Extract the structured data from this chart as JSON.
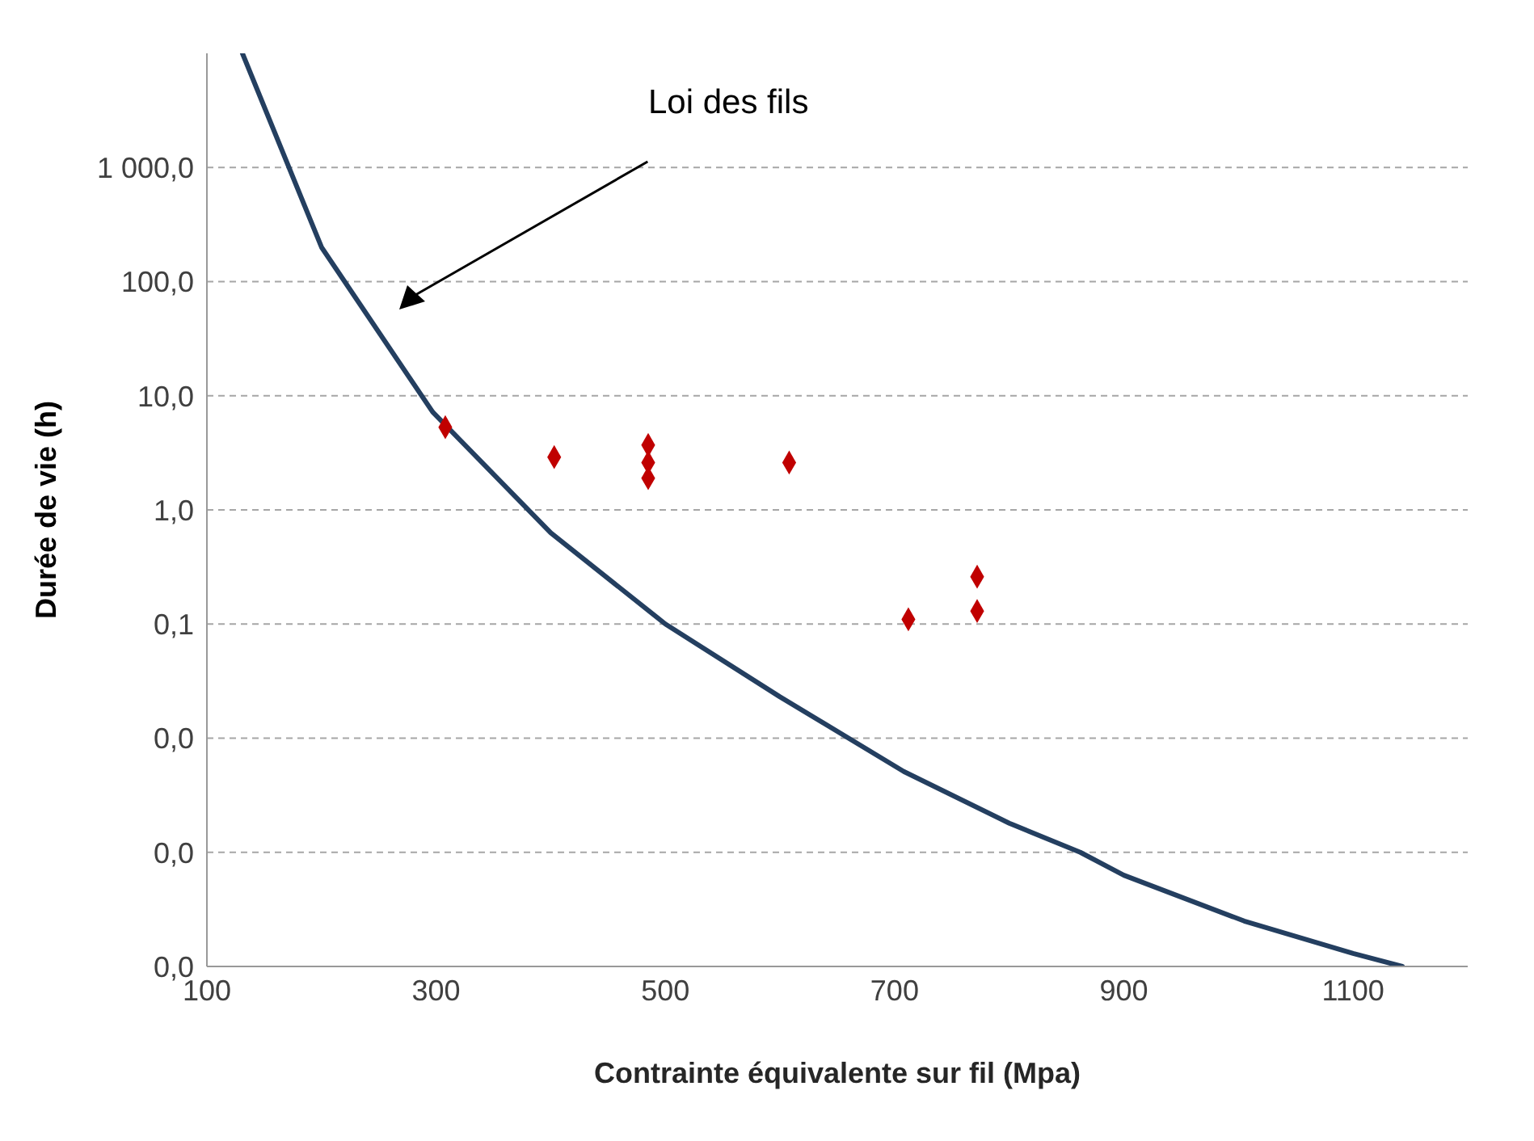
{
  "chart_data": {
    "type": "scatter",
    "xlabel": "Contrainte équivalente sur fil (Mpa)",
    "ylabel": "Durée de vie (h)",
    "log": "y",
    "grid": "y",
    "xlim": [
      100,
      1200
    ],
    "xticks": [
      100,
      300,
      500,
      700,
      900,
      1100
    ],
    "ylim": [
      0.0001,
      10000
    ],
    "yticks": [
      {
        "value": 0.0001,
        "label": "0,0"
      },
      {
        "value": 0.001,
        "label": "0,0"
      },
      {
        "value": 0.01,
        "label": "0,0"
      },
      {
        "value": 0.1,
        "label": "0,1"
      },
      {
        "value": 1,
        "label": "1,0"
      },
      {
        "value": 10,
        "label": "10,0"
      },
      {
        "value": 100,
        "label": "100,0"
      },
      {
        "value": 1000,
        "label": "1 000,0"
      }
    ],
    "annotations": [
      "Loi des fils"
    ],
    "series": [
      {
        "type": "line",
        "color": "#243f60",
        "line_style": "solid",
        "marker": "none",
        "x": [
          131,
          200,
          297,
          400,
          500,
          600,
          708,
          800,
          862,
          900,
          1005,
          1100,
          1143
        ],
        "values": [
          10000,
          200,
          7.2,
          0.63,
          0.1,
          0.023,
          0.0051,
          0.0018,
          0.001,
          0.00063,
          0.00025,
          0.00013,
          0.0001
        ]
      },
      {
        "type": "scatter",
        "color": "#c00000",
        "marker": "diamond",
        "x": [
          308,
          403,
          485,
          485,
          485,
          608,
          712,
          772,
          772
        ],
        "values": [
          5.3,
          2.9,
          3.7,
          2.6,
          1.9,
          2.6,
          0.11,
          0.26,
          0.13
        ]
      }
    ]
  }
}
